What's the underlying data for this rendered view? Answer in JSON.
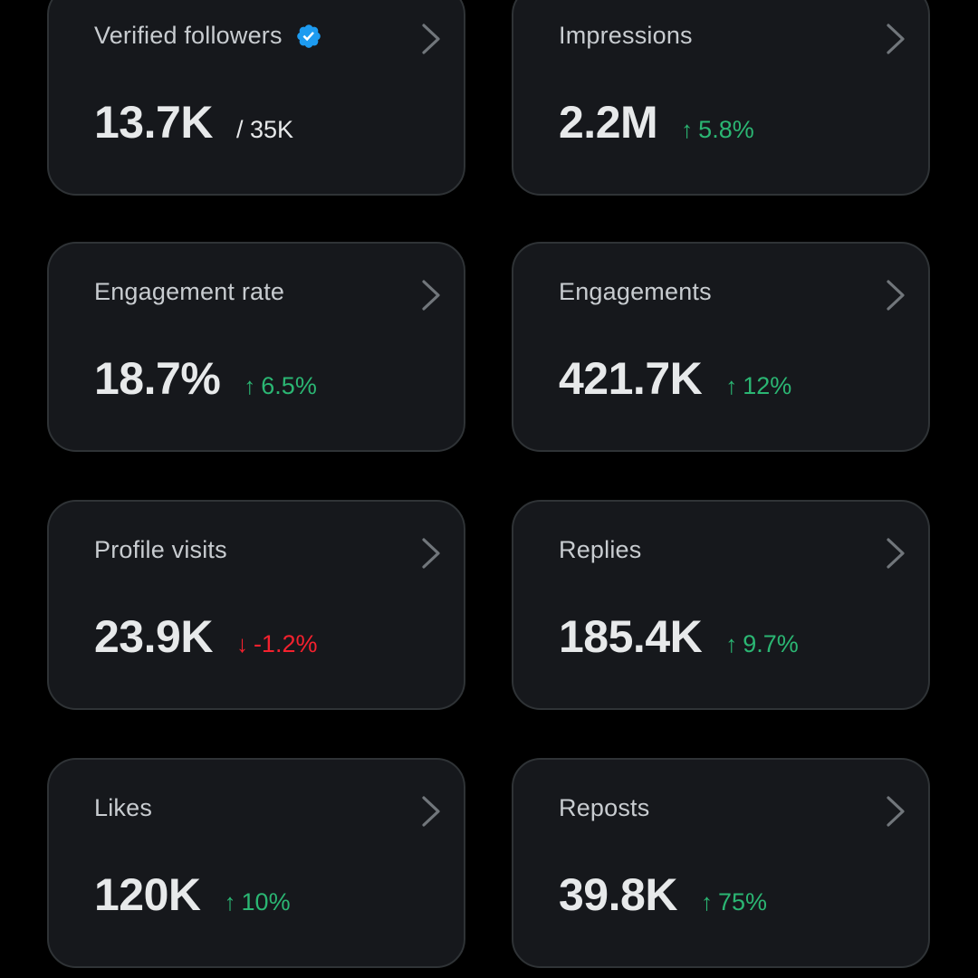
{
  "colors": {
    "background": "#000000",
    "card": "#16181c",
    "border": "#2f3336",
    "up": "#2bb673",
    "down": "#f4212e",
    "verified": "#1d9bf0"
  },
  "cards": [
    {
      "label": "Verified followers",
      "value": "13.7K",
      "sub": "/ 35K",
      "icon": "verified-badge-icon"
    },
    {
      "label": "Impressions",
      "value": "2.2M",
      "change": "5.8%",
      "direction": "up"
    },
    {
      "label": "Engagement rate",
      "value": "18.7%",
      "change": "6.5%",
      "direction": "up"
    },
    {
      "label": "Engagements",
      "value": "421.7K",
      "change": "12%",
      "direction": "up"
    },
    {
      "label": "Profile visits",
      "value": "23.9K",
      "change": "-1.2%",
      "direction": "down"
    },
    {
      "label": "Replies",
      "value": "185.4K",
      "change": "9.7%",
      "direction": "up"
    },
    {
      "label": "Likes",
      "value": "120K",
      "change": "10%",
      "direction": "up"
    },
    {
      "label": "Reposts",
      "value": "39.8K",
      "change": "75%",
      "direction": "up"
    }
  ]
}
